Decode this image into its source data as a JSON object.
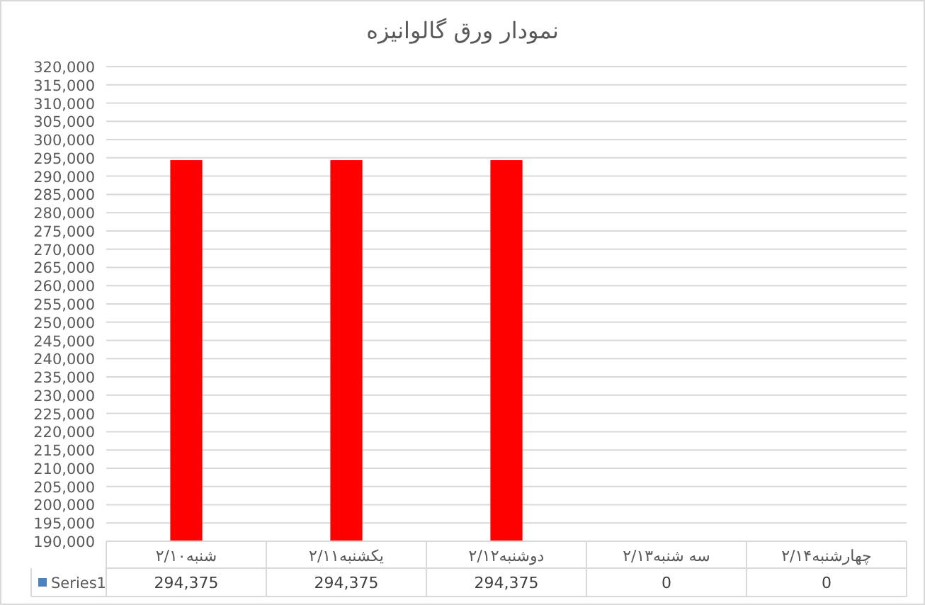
{
  "chart_data": {
    "type": "bar",
    "title": "نمودار ورق گالوانیزه",
    "categories": [
      "شنبه۲/۱۰",
      "یکشنبه۲/۱۱",
      "دوشنبه۲/۱۲",
      "سه شنبه۲/۱۳",
      "چهارشنبه۲/۱۴"
    ],
    "series": [
      {
        "name": "Series1",
        "color": "#4f81bd",
        "colors": [
          "#ff0000",
          "#ff0000",
          "#ff0000",
          null,
          null
        ],
        "values": [
          294375,
          294375,
          294375,
          null,
          null
        ],
        "value_labels": [
          "294,375",
          "294,375",
          "294,375",
          "0",
          "0"
        ]
      }
    ],
    "ylim": [
      190000,
      320000
    ],
    "yticks": [
      {
        "value": 190000,
        "label": "190,000"
      },
      {
        "value": 195000,
        "label": "195,000"
      },
      {
        "value": 200000,
        "label": "200,000"
      },
      {
        "value": 205000,
        "label": "205,000"
      },
      {
        "value": 210000,
        "label": "210,000"
      },
      {
        "value": 215000,
        "label": "215,000"
      },
      {
        "value": 220000,
        "label": "220,000"
      },
      {
        "value": 225000,
        "label": "225,000"
      },
      {
        "value": 230000,
        "label": "230,000"
      },
      {
        "value": 235000,
        "label": "235,000"
      },
      {
        "value": 240000,
        "label": "240,000"
      },
      {
        "value": 245000,
        "label": "245,000"
      },
      {
        "value": 250000,
        "label": "250,000"
      },
      {
        "value": 255000,
        "label": "255,000"
      },
      {
        "value": 260000,
        "label": "260,000"
      },
      {
        "value": 265000,
        "label": "265,000"
      },
      {
        "value": 270000,
        "label": "270,000"
      },
      {
        "value": 275000,
        "label": "275,000"
      },
      {
        "value": 280000,
        "label": "280,000"
      },
      {
        "value": 285000,
        "label": "285,000"
      },
      {
        "value": 290000,
        "label": "290,000"
      },
      {
        "value": 295000,
        "label": "295,000"
      },
      {
        "value": 300000,
        "label": "300,000"
      },
      {
        "value": 305000,
        "label": "305,000"
      },
      {
        "value": 310000,
        "label": "310,000"
      },
      {
        "value": 315000,
        "label": "315,000"
      },
      {
        "value": 320000,
        "label": "320,000"
      }
    ],
    "grid": "y",
    "legend": "bottom"
  }
}
